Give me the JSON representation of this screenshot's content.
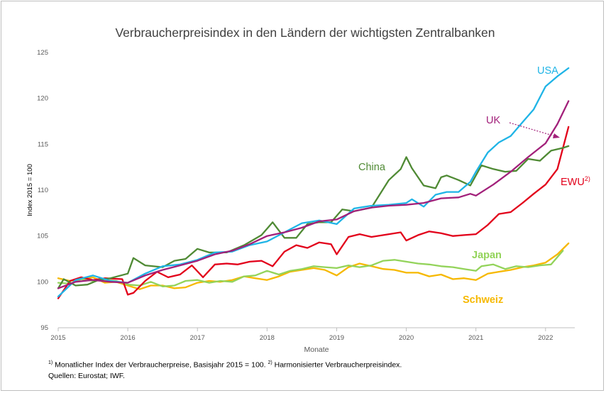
{
  "chart_data": {
    "type": "line",
    "title": "Verbraucherpreisindex in den Ländern der wichtigsten Zentralbanken",
    "xlabel": "Monate",
    "ylabel": "Index 2015 = 100",
    "xlim": [
      2015.0,
      2022.42
    ],
    "ylim": [
      95,
      125
    ],
    "yticks": [
      95,
      100,
      105,
      110,
      115,
      120,
      125
    ],
    "xticks": [
      2015,
      2016,
      2017,
      2018,
      2019,
      2020,
      2021,
      2022
    ],
    "series": [
      {
        "name": "USA",
        "color": "#1fb4e6",
        "x": [
          2015.0,
          2015.25,
          2015.5,
          2015.75,
          2016.0,
          2016.25,
          2016.5,
          2016.75,
          2017.0,
          2017.25,
          2017.5,
          2017.75,
          2018.0,
          2018.25,
          2018.5,
          2018.75,
          2019.0,
          2019.25,
          2019.5,
          2019.75,
          2020.0,
          2020.08,
          2020.25,
          2020.42,
          2020.58,
          2020.75,
          2020.92,
          2021.0,
          2021.17,
          2021.33,
          2021.5,
          2021.67,
          2021.83,
          2022.0,
          2022.17,
          2022.33
        ],
        "y": [
          98.4,
          100.2,
          100.7,
          100.1,
          99.9,
          100.9,
          101.7,
          101.9,
          102.4,
          103.2,
          103.3,
          104.0,
          104.4,
          105.4,
          106.4,
          106.7,
          106.3,
          108.0,
          108.3,
          108.4,
          108.6,
          109.0,
          108.2,
          109.5,
          109.8,
          109.8,
          110.9,
          112.0,
          114.1,
          115.2,
          115.9,
          117.4,
          118.8,
          121.3,
          122.4,
          123.3
        ]
      },
      {
        "name": "UK",
        "color": "#a2207a",
        "x": [
          2015.0,
          2015.25,
          2015.5,
          2015.75,
          2016.0,
          2016.25,
          2016.5,
          2016.75,
          2017.0,
          2017.25,
          2017.5,
          2017.75,
          2018.0,
          2018.25,
          2018.5,
          2018.75,
          2019.0,
          2019.25,
          2019.5,
          2019.75,
          2020.0,
          2020.25,
          2020.5,
          2020.75,
          2020.92,
          2021.0,
          2021.25,
          2021.5,
          2021.75,
          2022.0,
          2022.17,
          2022.33
        ],
        "y": [
          99.3,
          100.0,
          100.2,
          100.0,
          99.9,
          100.7,
          101.3,
          101.8,
          102.3,
          103.0,
          103.4,
          104.1,
          105.0,
          105.4,
          105.9,
          106.6,
          106.8,
          107.7,
          108.1,
          108.3,
          108.4,
          108.6,
          109.1,
          109.2,
          109.6,
          109.4,
          110.6,
          112.0,
          113.6,
          115.1,
          117.2,
          119.7
        ]
      },
      {
        "name": "China",
        "color": "#4f8a34",
        "x": [
          2015.0,
          2015.08,
          2015.25,
          2015.42,
          2015.58,
          2015.75,
          2016.0,
          2016.08,
          2016.25,
          2016.5,
          2016.67,
          2016.83,
          2017.0,
          2017.17,
          2017.42,
          2017.67,
          2017.92,
          2018.08,
          2018.25,
          2018.42,
          2018.58,
          2018.75,
          2018.92,
          2019.08,
          2019.25,
          2019.5,
          2019.75,
          2019.92,
          2020.0,
          2020.08,
          2020.25,
          2020.42,
          2020.5,
          2020.58,
          2020.75,
          2020.92,
          2021.08,
          2021.25,
          2021.42,
          2021.58,
          2021.75,
          2021.92,
          2022.08,
          2022.25,
          2022.33
        ],
        "y": [
          99.3,
          100.3,
          99.6,
          99.7,
          100.2,
          100.4,
          100.9,
          102.6,
          101.8,
          101.6,
          102.3,
          102.5,
          103.6,
          103.2,
          103.2,
          104.0,
          105.1,
          106.5,
          104.8,
          104.8,
          106.3,
          106.5,
          106.5,
          107.9,
          107.7,
          108.1,
          111.1,
          112.3,
          113.6,
          112.4,
          110.5,
          110.2,
          111.4,
          111.6,
          111.1,
          110.5,
          112.7,
          112.3,
          112.0,
          112.1,
          113.4,
          113.2,
          114.3,
          114.6,
          114.8
        ]
      },
      {
        "name": "EWU",
        "color": "#e2001a",
        "x": [
          2015.0,
          2015.17,
          2015.33,
          2015.5,
          2015.67,
          2015.92,
          2016.0,
          2016.08,
          2016.25,
          2016.42,
          2016.58,
          2016.75,
          2016.92,
          2017.08,
          2017.25,
          2017.42,
          2017.58,
          2017.75,
          2017.92,
          2018.08,
          2018.25,
          2018.42,
          2018.58,
          2018.75,
          2018.92,
          2019.0,
          2019.17,
          2019.33,
          2019.5,
          2019.67,
          2019.92,
          2020.0,
          2020.17,
          2020.33,
          2020.5,
          2020.67,
          2020.83,
          2021.0,
          2021.17,
          2021.33,
          2021.5,
          2021.67,
          2021.83,
          2022.0,
          2022.17,
          2022.33
        ],
        "y": [
          98.2,
          100.1,
          100.5,
          100.2,
          100.4,
          100.3,
          98.6,
          98.8,
          100.1,
          101.1,
          100.5,
          100.8,
          101.8,
          100.5,
          101.9,
          102.0,
          101.9,
          102.2,
          102.3,
          101.7,
          103.3,
          104.0,
          103.7,
          104.3,
          104.1,
          103.0,
          104.9,
          105.2,
          104.9,
          105.1,
          105.4,
          104.5,
          105.1,
          105.5,
          105.3,
          105.0,
          105.1,
          105.2,
          106.2,
          107.4,
          107.6,
          108.6,
          109.6,
          110.6,
          112.3,
          116.9
        ]
      },
      {
        "name": "Japan",
        "color": "#93d35a",
        "x": [
          2015.0,
          2015.17,
          2015.33,
          2015.5,
          2015.67,
          2015.83,
          2016.0,
          2016.17,
          2016.33,
          2016.5,
          2016.67,
          2016.83,
          2017.0,
          2017.17,
          2017.33,
          2017.5,
          2017.67,
          2017.83,
          2018.0,
          2018.17,
          2018.33,
          2018.5,
          2018.67,
          2018.83,
          2019.0,
          2019.17,
          2019.33,
          2019.5,
          2019.67,
          2019.83,
          2020.0,
          2020.17,
          2020.33,
          2020.5,
          2020.67,
          2020.83,
          2021.0,
          2021.08,
          2021.25,
          2021.42,
          2021.58,
          2021.75,
          2021.92,
          2022.08,
          2022.25
        ],
        "y": [
          99.9,
          99.8,
          100.3,
          100.1,
          100.2,
          100.1,
          99.7,
          99.6,
          100.0,
          99.5,
          99.6,
          100.1,
          100.2,
          99.9,
          100.1,
          100.0,
          100.6,
          100.7,
          101.2,
          100.8,
          101.2,
          101.4,
          101.7,
          101.6,
          101.5,
          101.8,
          101.6,
          101.8,
          102.3,
          102.4,
          102.2,
          102.0,
          101.9,
          101.7,
          101.6,
          101.4,
          101.2,
          101.7,
          101.9,
          101.4,
          101.7,
          101.6,
          101.8,
          101.9,
          103.4
        ]
      },
      {
        "name": "Schweiz",
        "color": "#f6b800",
        "x": [
          2015.0,
          2015.17,
          2015.33,
          2015.5,
          2015.67,
          2015.83,
          2016.0,
          2016.17,
          2016.33,
          2016.5,
          2016.67,
          2016.83,
          2017.0,
          2017.17,
          2017.33,
          2017.5,
          2017.67,
          2017.83,
          2018.0,
          2018.17,
          2018.33,
          2018.5,
          2018.67,
          2018.83,
          2019.0,
          2019.17,
          2019.33,
          2019.5,
          2019.67,
          2019.83,
          2020.0,
          2020.17,
          2020.33,
          2020.5,
          2020.67,
          2020.83,
          2021.0,
          2021.17,
          2021.33,
          2021.5,
          2021.67,
          2021.83,
          2022.0,
          2022.17,
          2022.33
        ],
        "y": [
          100.4,
          100.1,
          100.3,
          100.5,
          99.9,
          100.0,
          99.6,
          99.2,
          99.6,
          99.6,
          99.3,
          99.4,
          99.9,
          100.1,
          100.0,
          100.2,
          100.6,
          100.4,
          100.2,
          100.6,
          101.1,
          101.3,
          101.5,
          101.3,
          100.7,
          101.6,
          102.0,
          101.7,
          101.4,
          101.3,
          101.0,
          101.0,
          100.6,
          100.8,
          100.3,
          100.4,
          100.2,
          100.9,
          101.1,
          101.3,
          101.6,
          101.8,
          102.1,
          103.0,
          104.2
        ]
      }
    ],
    "labels": {
      "usa": "USA",
      "uk": "UK",
      "china": "China",
      "ewu": "EWU",
      "ewu_sup": "2)",
      "japan": "Japan",
      "schweiz": "Schweiz"
    }
  },
  "footnotes": {
    "line1_sup1": "1)",
    "line1_text1": " Monatlicher Index der Verbraucherpreise, Basisjahr 2015 = 100. ",
    "line1_sup2": "2)",
    "line1_text2": " Harmonisierter Verbraucherpreisindex.",
    "line2": "Quellen: Eurostat; IWF."
  }
}
